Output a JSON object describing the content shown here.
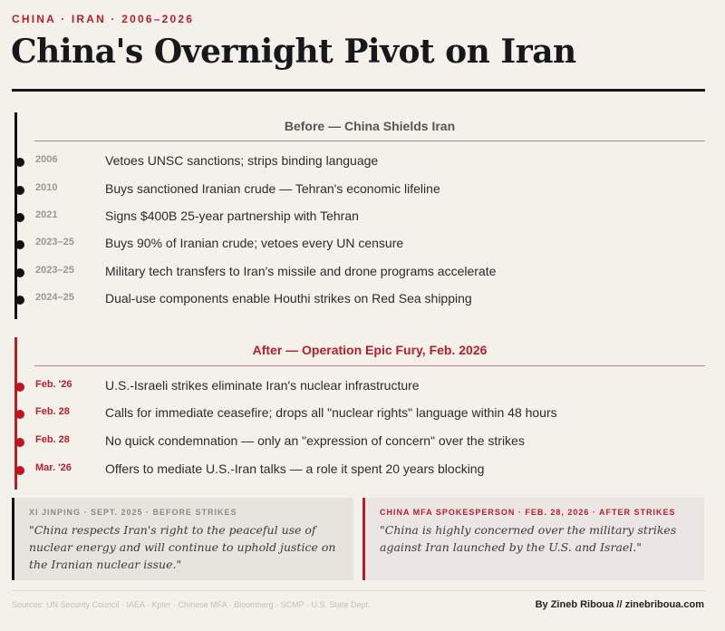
{
  "kicker": "CHINA · IRAN · 2006–2026",
  "title": "China's Overnight Pivot on Iran",
  "colors": {
    "accent": "#b51f2a",
    "ink": "#16181c",
    "background": "#f4f1eb"
  },
  "before": {
    "heading": "Before — China Shields Iran",
    "items": [
      {
        "date": "2006",
        "text": "Vetoes UNSC sanctions; strips binding language"
      },
      {
        "date": "2010",
        "text": "Buys sanctioned Iranian crude — Tehran's economic lifeline"
      },
      {
        "date": "2021",
        "text": "Signs $400B 25-year partnership with Tehran"
      },
      {
        "date": "2023–25",
        "text": "Buys 90% of Iranian crude; vetoes every UN censure"
      },
      {
        "date": "2023–25",
        "text": "Military tech transfers to Iran's missile and drone programs accelerate"
      },
      {
        "date": "2024–25",
        "text": "Dual-use components enable Houthi strikes on Red Sea shipping"
      }
    ]
  },
  "after": {
    "heading": "After — Operation Epic Fury, Feb. 2026",
    "items": [
      {
        "date": "Feb. '26",
        "text": "U.S.-Israeli strikes eliminate Iran's nuclear infrastructure"
      },
      {
        "date": "Feb. 28",
        "text": "Calls for immediate ceasefire; drops all \"nuclear rights\" language within 48 hours"
      },
      {
        "date": "Feb. 28",
        "text": "No quick condemnation — only an \"expression of concern\" over the strikes"
      },
      {
        "date": "Mar. '26",
        "text": "Offers to mediate U.S.-Iran talks — a role it spent 20 years blocking"
      }
    ]
  },
  "quotes": [
    {
      "label": "XI JINPING · SEPT. 2025 · BEFORE STRIKES",
      "text": "\"China respects Iran's right to the peaceful use of nuclear energy and will continue to uphold justice on the Iranian nuclear issue.\""
    },
    {
      "label": "CHINA MFA SPOKESPERSON · FEB. 28, 2026 · AFTER STRIKES",
      "text": "\"China is highly concerned over the military strikes against Iran launched by the U.S. and Israel.\""
    }
  ],
  "footer": {
    "sources": "Sources: UN Security Council · IAEA · Kpler · Chinese MFA · Bloomberg · SCMP · U.S. State Dept.",
    "byline": "By Zineb Riboua // zinebriboua.com"
  }
}
